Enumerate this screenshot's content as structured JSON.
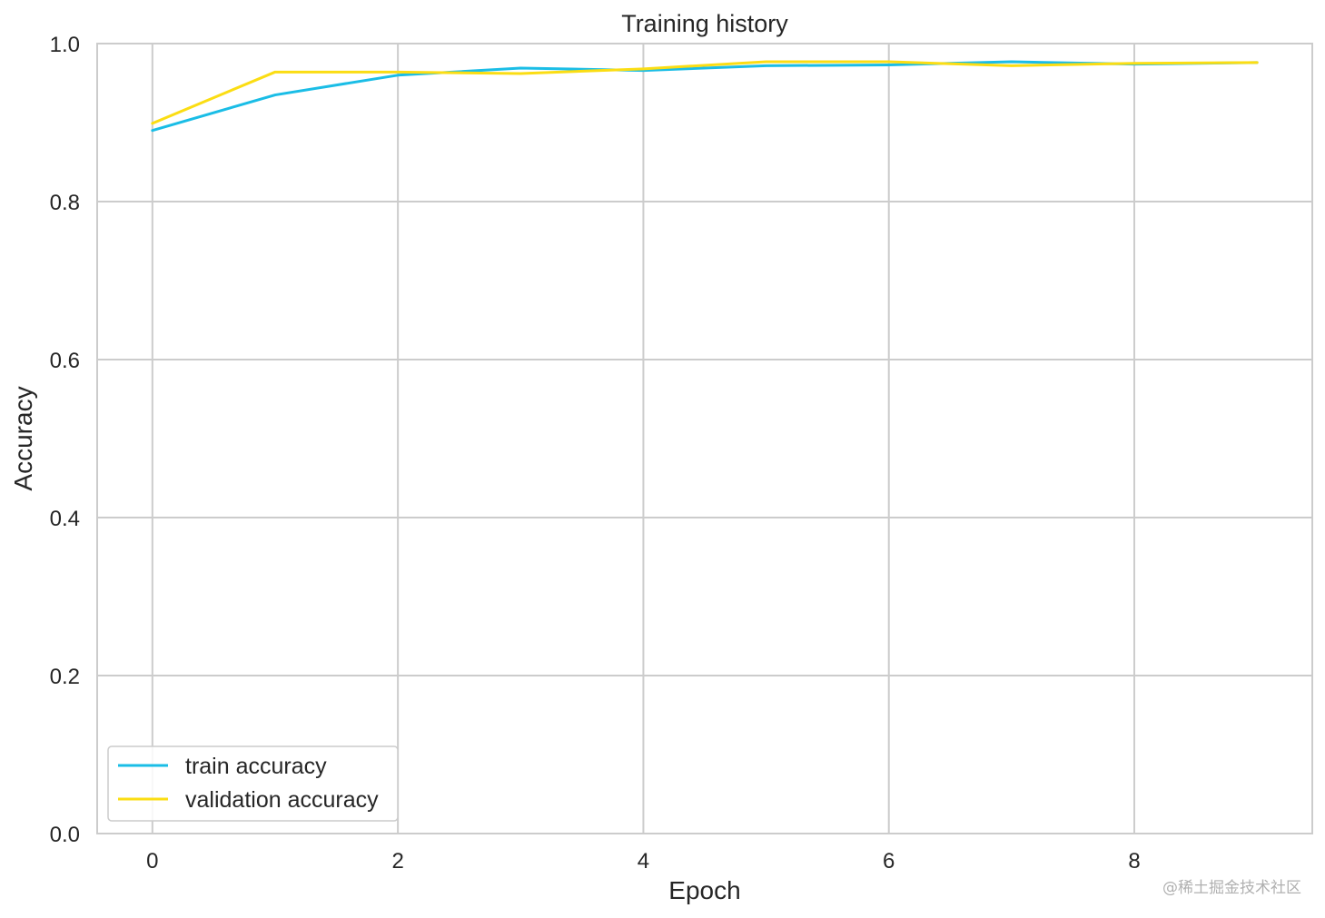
{
  "chart_data": {
    "type": "line",
    "title": "Training history",
    "xlabel": "Epoch",
    "ylabel": "Accuracy",
    "xlim": [
      -0.45,
      9.45
    ],
    "ylim": [
      0.0,
      1.0
    ],
    "xticks": [
      0,
      2,
      4,
      6,
      8
    ],
    "yticks": [
      0.0,
      0.2,
      0.4,
      0.6,
      0.8,
      1.0
    ],
    "xtick_labels": [
      "0",
      "2",
      "4",
      "6",
      "8"
    ],
    "ytick_labels": [
      "0.0",
      "0.2",
      "0.4",
      "0.6",
      "0.8",
      "1.0"
    ],
    "grid": true,
    "legend_position": "lower-left",
    "x": [
      0,
      1,
      2,
      3,
      4,
      5,
      6,
      7,
      8,
      9
    ],
    "series": [
      {
        "name": "train accuracy",
        "color": "#1ABDE6",
        "values": [
          0.89,
          0.935,
          0.96,
          0.969,
          0.966,
          0.972,
          0.973,
          0.977,
          0.974,
          0.976
        ]
      },
      {
        "name": "validation accuracy",
        "color": "#FBDD13",
        "values": [
          0.899,
          0.964,
          0.964,
          0.962,
          0.968,
          0.977,
          0.977,
          0.972,
          0.975,
          0.976
        ]
      }
    ]
  },
  "watermark": "@稀土掘金技术社区"
}
